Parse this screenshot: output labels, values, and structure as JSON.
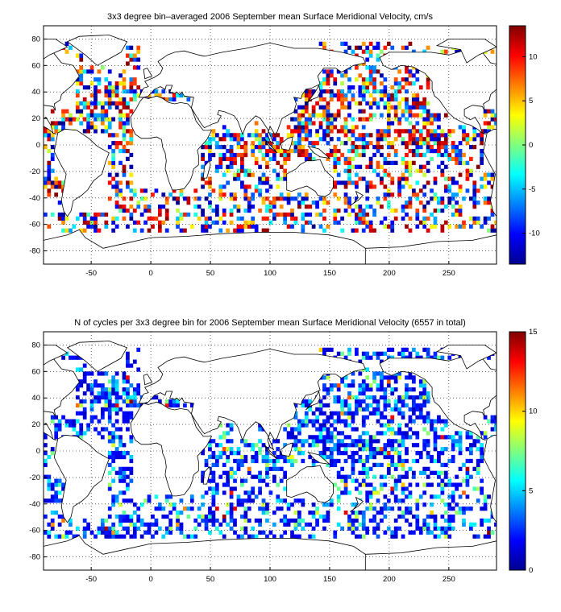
{
  "chart_data": [
    {
      "type": "heatmap",
      "title": "3x3 degree bin–averaged 2006 September mean Surface Meridional Velocity, cm/s",
      "xlim": [
        -90,
        290
      ],
      "ylim": [
        -90,
        90
      ],
      "xticks": [
        "-50",
        "0",
        "50",
        "100",
        "150",
        "200",
        "250"
      ],
      "xtick_values": [
        -50,
        0,
        50,
        100,
        150,
        200,
        250
      ],
      "yticks": [
        "80",
        "60",
        "40",
        "20",
        "0",
        "-20",
        "-40",
        "-60",
        "-80"
      ],
      "ytick_values": [
        80,
        60,
        40,
        20,
        0,
        -20,
        -40,
        -60,
        -80
      ],
      "grid": true,
      "bin_size_deg": 3,
      "colorbar": {
        "range": [
          -13.5,
          13.5
        ],
        "ticks": [
          "10",
          "5",
          "0",
          "-5",
          "-10"
        ],
        "tick_values": [
          10,
          5,
          0,
          -5,
          -10
        ],
        "colormap": "jet"
      },
      "field": "surface meridional velocity (cm/s)"
    },
    {
      "type": "heatmap",
      "title": "N of cycles per 3x3 degree bin for 2006 September mean Surface Meridional Velocity (6557 in total)",
      "xlim": [
        -90,
        290
      ],
      "ylim": [
        -90,
        90
      ],
      "xticks": [
        "-50",
        "0",
        "50",
        "100",
        "150",
        "200",
        "250"
      ],
      "xtick_values": [
        -50,
        0,
        50,
        100,
        150,
        200,
        250
      ],
      "yticks": [
        "80",
        "60",
        "40",
        "20",
        "0",
        "-20",
        "-40",
        "-60",
        "-80"
      ],
      "ytick_values": [
        80,
        60,
        40,
        20,
        0,
        -20,
        -40,
        -60,
        -80
      ],
      "grid": true,
      "bin_size_deg": 3,
      "colorbar": {
        "range": [
          0,
          15
        ],
        "ticks": [
          "15",
          "10",
          "5",
          "0"
        ],
        "tick_values": [
          15,
          10,
          5,
          0
        ],
        "colormap": "jet"
      },
      "field": "number of cycles per bin"
    }
  ]
}
